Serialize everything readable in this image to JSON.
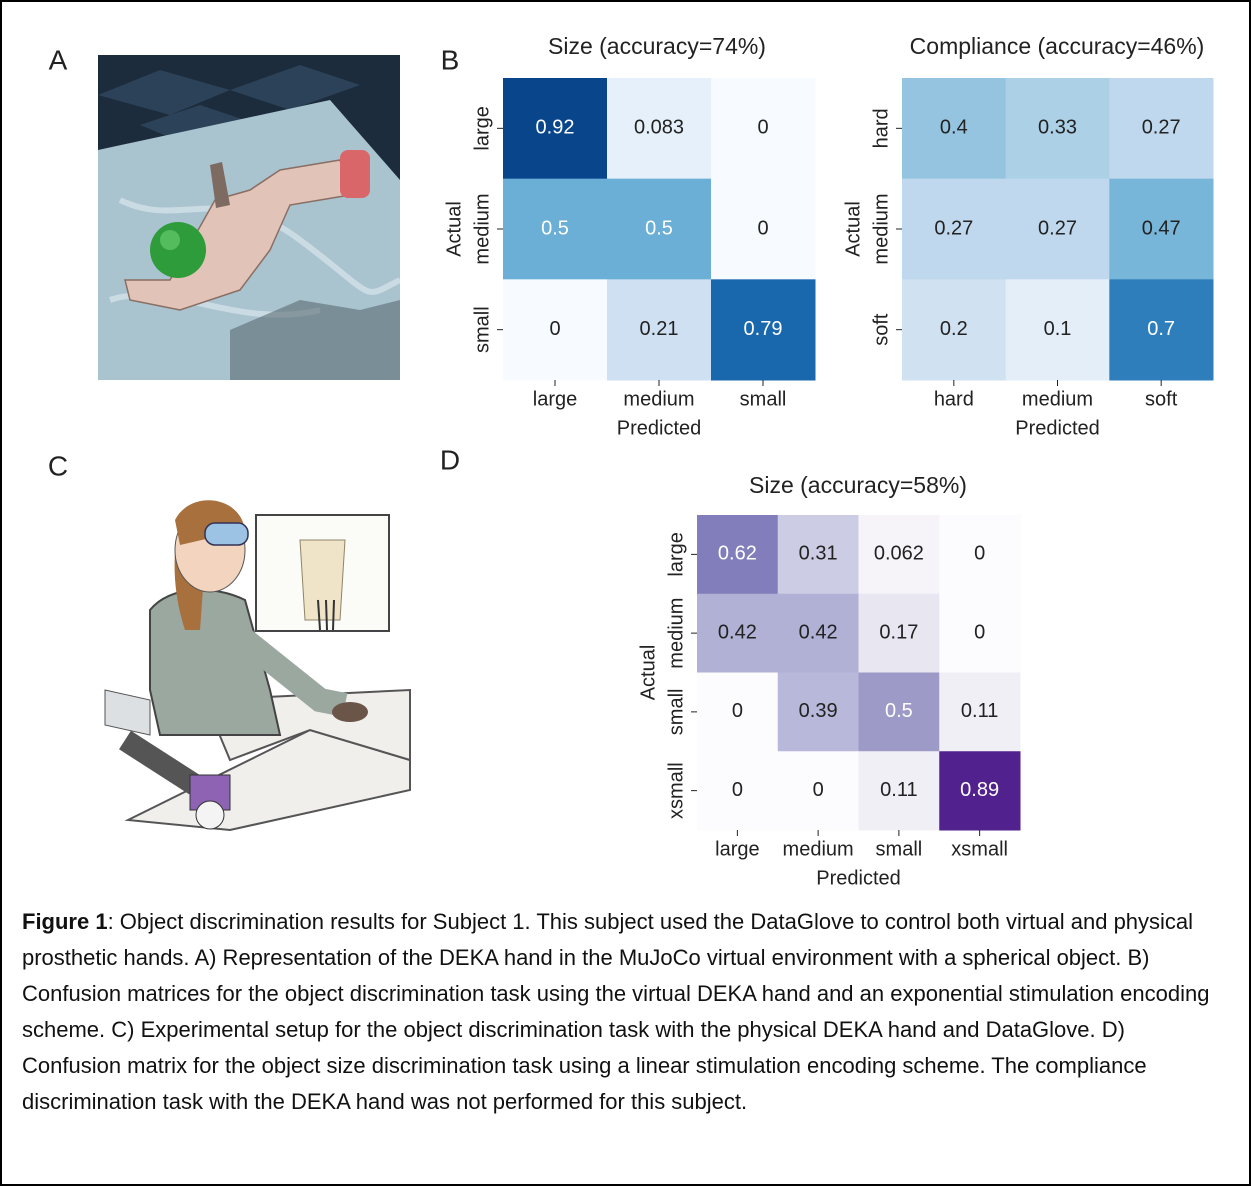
{
  "panel_labels": [
    "A",
    "B",
    "C",
    "D"
  ],
  "chart_data": [
    {
      "type": "heatmap",
      "title": "Size (accuracy=74%)",
      "colormap": "Blues",
      "color_range": [
        0,
        1
      ],
      "x_categories": [
        "large",
        "medium",
        "small"
      ],
      "y_categories": [
        "large",
        "medium",
        "small"
      ],
      "x_label": "Predicted",
      "y_label": "Actual",
      "values": [
        [
          0.92,
          0.083,
          0
        ],
        [
          0.5,
          0.5,
          0
        ],
        [
          0,
          0.21,
          0.79
        ]
      ]
    },
    {
      "type": "heatmap",
      "title": "Compliance (accuracy=46%)",
      "colormap": "Blues",
      "color_range": [
        0,
        1
      ],
      "x_categories": [
        "hard",
        "medium",
        "soft"
      ],
      "y_categories": [
        "hard",
        "medium",
        "soft"
      ],
      "x_label": "Predicted",
      "y_label": "Actual",
      "values": [
        [
          0.4,
          0.33,
          0.27
        ],
        [
          0.27,
          0.27,
          0.47
        ],
        [
          0.2,
          0.1,
          0.7
        ]
      ]
    },
    {
      "type": "heatmap",
      "title": "Size (accuracy=58%)",
      "colormap": "Purples",
      "color_range": [
        0,
        1
      ],
      "x_categories": [
        "large",
        "medium",
        "small",
        "xsmall"
      ],
      "y_categories": [
        "large",
        "medium",
        "small",
        "xsmall"
      ],
      "x_label": "Predicted",
      "y_label": "Actual",
      "values": [
        [
          0.62,
          0.31,
          0.062,
          0
        ],
        [
          0.42,
          0.42,
          0.17,
          0
        ],
        [
          0,
          0.39,
          0.5,
          0.11
        ],
        [
          0,
          0,
          0.11,
          0.89
        ]
      ]
    }
  ],
  "caption": {
    "label": "Figure 1",
    "text": ": Object discrimination results for Subject 1. This subject used the DataGlove to control both virtual and physical prosthetic hands. A) Representation of the DEKA hand in the MuJoCo virtual environment with a spherical object. B) Confusion matrices for the object discrimination task using the virtual DEKA hand and an exponential stimulation encoding scheme. C) Experimental setup for the object discrimination task with the physical DEKA hand and DataGlove. D) Confusion matrix for the object size discrimination task using a linear stimulation encoding scheme. The compliance discrimination task with the DEKA hand was not performed for this subject."
  }
}
